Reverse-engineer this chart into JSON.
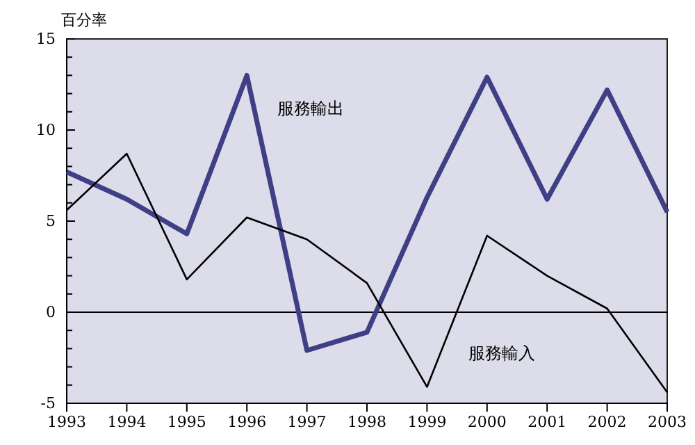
{
  "chart_data": {
    "type": "line",
    "ylabel": "百分率",
    "x": [
      1993,
      1994,
      1995,
      1996,
      1997,
      1998,
      1999,
      2000,
      2001,
      2002,
      2003
    ],
    "xlim": [
      1993,
      2003
    ],
    "xticks": [
      1993,
      1994,
      1995,
      1996,
      1997,
      1998,
      1999,
      2000,
      2001,
      2002,
      2003
    ],
    "ylim": [
      -5,
      15
    ],
    "yticks": [
      -5,
      {
        "value": -4,
        "label": null
      },
      {
        "value": -3,
        "label": null
      },
      {
        "value": -2,
        "label": null
      },
      {
        "value": -1,
        "label": null
      },
      0,
      {
        "value": 1,
        "label": null
      },
      {
        "value": 2,
        "label": null
      },
      {
        "value": 3,
        "label": null
      },
      {
        "value": 4,
        "label": null
      },
      5,
      {
        "value": 6,
        "label": null
      },
      {
        "value": 7,
        "label": null
      },
      {
        "value": 8,
        "label": null
      },
      {
        "value": 9,
        "label": null
      },
      10,
      {
        "value": 11,
        "label": null
      },
      {
        "value": 12,
        "label": null
      },
      {
        "value": 13,
        "label": null
      },
      {
        "value": 14,
        "label": null
      },
      15
    ],
    "series": [
      {
        "name": "服務輸出",
        "color": "#3f3f86",
        "values": [
          7.7,
          6.2,
          4.3,
          13.0,
          -2.1,
          -1.1,
          6.3,
          12.9,
          6.2,
          12.2,
          5.5
        ]
      },
      {
        "name": "服務輸入",
        "color": "#000000",
        "values": [
          5.6,
          8.7,
          1.8,
          5.2,
          4.0,
          1.6,
          -4.1,
          4.2,
          2.0,
          0.2,
          -4.4
        ]
      }
    ],
    "ref_lines": [
      {
        "axis": "y",
        "value": 0,
        "color": "#000000"
      }
    ],
    "grid": false,
    "marker": "none"
  }
}
